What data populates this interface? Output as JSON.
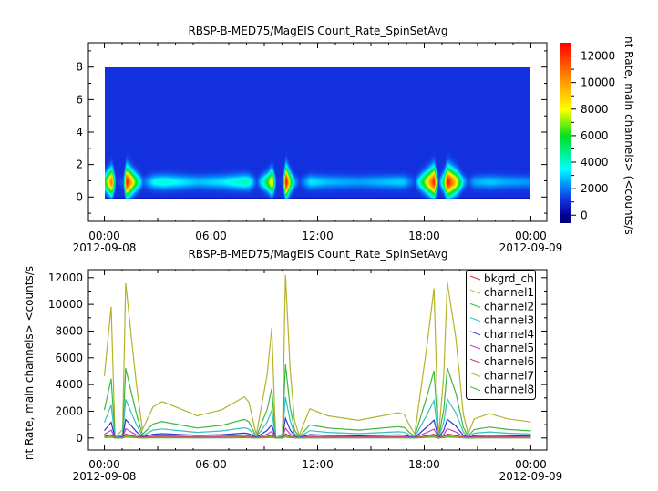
{
  "chart_data": [
    {
      "type": "heatmap",
      "title": "RBSP-B-MED75/MagEIS  Count_Rate_SpinSetAvg",
      "xlabel": "",
      "ylabel": "",
      "zlabel": "nt Rate, main channels> (<counts/s",
      "xlim_hours": [
        -0.9,
        24.9
      ],
      "ylim": [
        -1.5,
        9.5
      ],
      "y_extent": [
        0,
        8
      ],
      "zlim": [
        -600,
        13000
      ],
      "colormap": "rainbow",
      "x_tick_labels": [
        "00:00",
        "06:00",
        "12:00",
        "18:00",
        "00:00"
      ],
      "x_tick_hours": [
        0,
        6,
        12,
        18,
        24
      ],
      "x_date_labels": [
        "2012-09-08",
        "2012-09-09"
      ],
      "y_ticks": [
        0,
        2,
        4,
        6,
        8
      ],
      "z_ticks": [
        0,
        2000,
        4000,
        6000,
        8000,
        10000,
        12000
      ],
      "band_center": 1,
      "colors": {
        "low": "#000090",
        "mid": "#00ffff",
        "high": "#ff0000",
        "background": "#1f30d8"
      }
    },
    {
      "type": "line",
      "title": "RBSP-B-MED75/MagEIS  Count_Rate_SpinSetAvg",
      "xlabel": "",
      "ylabel": "nt Rate, main channels> <counts/s",
      "xlim_hours": [
        -0.9,
        24.9
      ],
      "ylim": [
        -900,
        12600
      ],
      "y_ticks": [
        0,
        2000,
        4000,
        6000,
        8000,
        10000,
        12000
      ],
      "x_tick_labels": [
        "00:00",
        "06:00",
        "12:00",
        "18:00",
        "00:00"
      ],
      "x_tick_hours": [
        0,
        6,
        12,
        18,
        24
      ],
      "x_date_labels": [
        "2012-09-08",
        "2012-09-09"
      ],
      "legend": "top-right",
      "x_hours": [
        0,
        0.38,
        0.6,
        1.03,
        1.2,
        1.54,
        1.8,
        2.14,
        2.74,
        3.25,
        4.19,
        5.22,
        6.6,
        7.88,
        8.13,
        8.48,
        8.56,
        9.16,
        9.42,
        9.59,
        9.65,
        10.02,
        10.19,
        10.45,
        10.7,
        10.96,
        11.56,
        12.59,
        14.3,
        16.53,
        16.87,
        17.2,
        17.47,
        18.16,
        18.55,
        18.72,
        18.8,
        19.1,
        19.3,
        19.78,
        20.2,
        20.47,
        20.81,
        21.67,
        22.7,
        24.0
      ],
      "series": [
        {
          "name": "bkgrd_ch",
          "color": "#cc3333",
          "values": [
            70,
            150,
            0,
            10,
            170,
            110,
            60,
            10,
            40,
            40,
            30,
            20,
            30,
            50,
            40,
            10,
            0,
            70,
            120,
            30,
            0,
            0,
            180,
            80,
            20,
            0,
            30,
            20,
            20,
            30,
            30,
            10,
            0,
            110,
            170,
            50,
            0,
            70,
            170,
            110,
            30,
            0,
            20,
            30,
            20,
            20
          ]
        },
        {
          "name": "channel1",
          "color": "#b5b22a",
          "values": [
            4640,
            9840,
            50,
            630,
            11590,
            7230,
            4040,
            630,
            2340,
            2730,
            2230,
            1660,
            2110,
            3090,
            2680,
            630,
            300,
            4720,
            8250,
            1770,
            0,
            300,
            12220,
            5180,
            1320,
            200,
            2180,
            1660,
            1320,
            1890,
            1770,
            870,
            300,
            7000,
            11200,
            3600,
            0,
            4720,
            11660,
            7450,
            1770,
            300,
            1430,
            1820,
            1430,
            1200
          ]
        },
        {
          "name": "channel2",
          "color": "#3cb83c",
          "values": [
            2090,
            4430,
            20,
            280,
            5220,
            3250,
            1820,
            280,
            1050,
            1230,
            1000,
            750,
            950,
            1390,
            1210,
            280,
            140,
            2120,
            3710,
            800,
            0,
            140,
            5500,
            2330,
            590,
            90,
            980,
            750,
            590,
            850,
            800,
            390,
            140,
            3150,
            5040,
            1620,
            0,
            2120,
            5250,
            3350,
            800,
            140,
            640,
            820,
            640,
            540
          ]
        },
        {
          "name": "channel3",
          "color": "#33c0c0",
          "values": [
            1160,
            2460,
            10,
            160,
            2900,
            1810,
            1010,
            160,
            590,
            680,
            560,
            420,
            530,
            770,
            670,
            160,
            80,
            1180,
            2060,
            440,
            0,
            80,
            3060,
            1300,
            330,
            50,
            550,
            420,
            330,
            470,
            440,
            220,
            80,
            1750,
            2800,
            900,
            0,
            1180,
            2920,
            1860,
            440,
            80,
            360,
            460,
            360,
            300
          ]
        },
        {
          "name": "channel4",
          "color": "#3333cc",
          "values": [
            560,
            1180,
            10,
            80,
            1390,
            870,
            480,
            80,
            280,
            330,
            270,
            200,
            250,
            370,
            320,
            80,
            40,
            570,
            990,
            210,
            0,
            40,
            1470,
            620,
            160,
            20,
            260,
            200,
            160,
            230,
            210,
            100,
            40,
            840,
            1340,
            430,
            0,
            570,
            1400,
            890,
            210,
            40,
            170,
            220,
            170,
            140
          ]
        },
        {
          "name": "channel5",
          "color": "#c040c0",
          "values": [
            280,
            590,
            0,
            40,
            700,
            430,
            240,
            40,
            140,
            160,
            130,
            100,
            130,
            190,
            160,
            40,
            20,
            280,
            500,
            110,
            0,
            20,
            730,
            310,
            80,
            10,
            130,
            100,
            80,
            110,
            110,
            50,
            20,
            420,
            670,
            220,
            0,
            280,
            700,
            450,
            110,
            20,
            90,
            110,
            90,
            70
          ]
        },
        {
          "name": "channel6",
          "color": "#c03030",
          "values": [
            120,
            250,
            0,
            20,
            290,
            180,
            100,
            20,
            60,
            70,
            60,
            40,
            50,
            80,
            70,
            20,
            10,
            120,
            210,
            40,
            0,
            10,
            310,
            130,
            30,
            10,
            50,
            40,
            30,
            50,
            40,
            20,
            10,
            180,
            280,
            90,
            0,
            120,
            290,
            190,
            40,
            10,
            40,
            50,
            40,
            30
          ]
        },
        {
          "name": "channel7",
          "color": "#b5b22a",
          "values": [
            60,
            120,
            0,
            10,
            140,
            90,
            50,
            10,
            30,
            30,
            30,
            20,
            30,
            40,
            30,
            10,
            0,
            60,
            100,
            20,
            0,
            0,
            150,
            60,
            20,
            0,
            30,
            20,
            20,
            20,
            20,
            10,
            0,
            90,
            130,
            40,
            0,
            60,
            140,
            90,
            20,
            0,
            20,
            20,
            20,
            10
          ]
        },
        {
          "name": "channel8",
          "color": "#3cb83c",
          "values": [
            30,
            60,
            0,
            0,
            70,
            40,
            20,
            0,
            10,
            20,
            10,
            10,
            10,
            20,
            20,
            0,
            0,
            30,
            50,
            10,
            0,
            0,
            70,
            30,
            10,
            0,
            10,
            10,
            10,
            10,
            10,
            0,
            0,
            40,
            70,
            20,
            0,
            30,
            70,
            40,
            10,
            0,
            10,
            10,
            10,
            10
          ]
        }
      ]
    }
  ]
}
